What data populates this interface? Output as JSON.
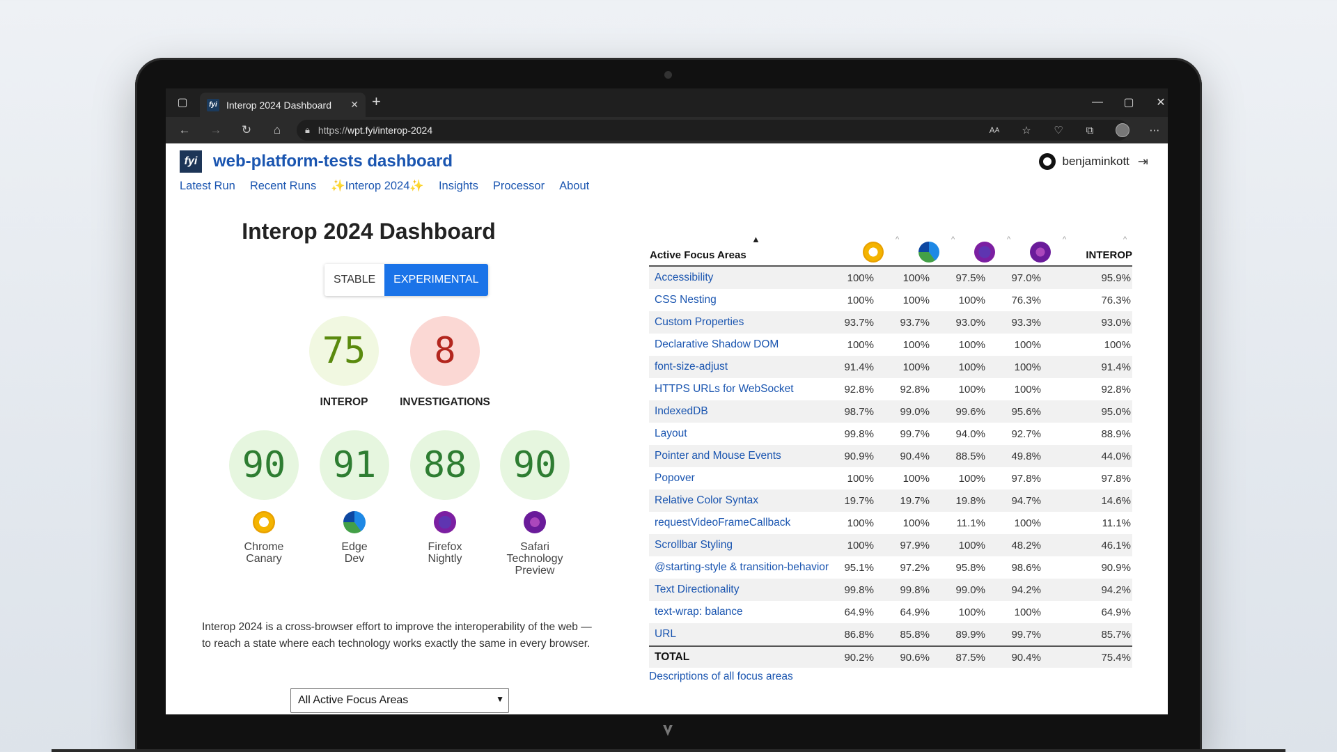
{
  "browser": {
    "tab_title": "Interop 2024 Dashboard",
    "tab_favicon": "fyi",
    "url_scheme": "https://",
    "url_host": "wpt.fyi/interop-2024"
  },
  "site": {
    "logo": "fyi",
    "title": "web-platform-tests dashboard",
    "user": "benjaminkott",
    "nav": [
      "Latest Run",
      "Recent Runs",
      "✨Interop 2024✨",
      "Insights",
      "Processor",
      "About"
    ]
  },
  "dashboard": {
    "title": "Interop 2024 Dashboard",
    "toggle": {
      "stable": "STABLE",
      "experimental": "EXPERIMENTAL",
      "selected": "EXPERIMENTAL"
    },
    "interop": {
      "value": "75",
      "label": "INTEROP"
    },
    "investigations": {
      "value": "8",
      "label": "INVESTIGATIONS"
    },
    "browsers": [
      {
        "score": "90",
        "line1": "Chrome",
        "line2": "Canary",
        "line3": "",
        "icon": "chrome-canary-icon"
      },
      {
        "score": "91",
        "line1": "Edge",
        "line2": "Dev",
        "line3": "",
        "icon": "edge-dev-icon"
      },
      {
        "score": "88",
        "line1": "Firefox",
        "line2": "Nightly",
        "line3": "",
        "icon": "firefox-nightly-icon"
      },
      {
        "score": "90",
        "line1": "Safari",
        "line2": "Technology",
        "line3": "Preview",
        "icon": "safari-tp-icon"
      }
    ],
    "description": "Interop 2024 is a cross-browser effort to improve the interoperability of the web — to reach a state where each technology works exactly the same in every browser.",
    "select_value": "All Active Focus Areas"
  },
  "table": {
    "header": {
      "focus": "Active Focus Areas",
      "interop": "INTEROP"
    },
    "rows": [
      {
        "name": "Accessibility",
        "v": [
          "100%",
          "100%",
          "97.5%",
          "97.0%",
          "95.9%"
        ]
      },
      {
        "name": "CSS Nesting",
        "v": [
          "100%",
          "100%",
          "100%",
          "76.3%",
          "76.3%"
        ]
      },
      {
        "name": "Custom Properties",
        "v": [
          "93.7%",
          "93.7%",
          "93.0%",
          "93.3%",
          "93.0%"
        ]
      },
      {
        "name": "Declarative Shadow DOM",
        "v": [
          "100%",
          "100%",
          "100%",
          "100%",
          "100%"
        ]
      },
      {
        "name": "font-size-adjust",
        "v": [
          "91.4%",
          "100%",
          "100%",
          "100%",
          "91.4%"
        ]
      },
      {
        "name": "HTTPS URLs for WebSocket",
        "v": [
          "92.8%",
          "92.8%",
          "100%",
          "100%",
          "92.8%"
        ]
      },
      {
        "name": "IndexedDB",
        "v": [
          "98.7%",
          "99.0%",
          "99.6%",
          "95.6%",
          "95.0%"
        ]
      },
      {
        "name": "Layout",
        "v": [
          "99.8%",
          "99.7%",
          "94.0%",
          "92.7%",
          "88.9%"
        ]
      },
      {
        "name": "Pointer and Mouse Events",
        "v": [
          "90.9%",
          "90.4%",
          "88.5%",
          "49.8%",
          "44.0%"
        ]
      },
      {
        "name": "Popover",
        "v": [
          "100%",
          "100%",
          "100%",
          "97.8%",
          "97.8%"
        ]
      },
      {
        "name": "Relative Color Syntax",
        "v": [
          "19.7%",
          "19.7%",
          "19.8%",
          "94.7%",
          "14.6%"
        ]
      },
      {
        "name": "requestVideoFrameCallback",
        "v": [
          "100%",
          "100%",
          "11.1%",
          "100%",
          "11.1%"
        ]
      },
      {
        "name": "Scrollbar Styling",
        "v": [
          "100%",
          "97.9%",
          "100%",
          "48.2%",
          "46.1%"
        ]
      },
      {
        "name": "@starting-style & transition-behavior",
        "v": [
          "95.1%",
          "97.2%",
          "95.8%",
          "98.6%",
          "90.9%"
        ]
      },
      {
        "name": "Text Directionality",
        "v": [
          "99.8%",
          "99.8%",
          "99.0%",
          "94.2%",
          "94.2%"
        ]
      },
      {
        "name": "text-wrap: balance",
        "v": [
          "64.9%",
          "64.9%",
          "100%",
          "100%",
          "64.9%"
        ]
      },
      {
        "name": "URL",
        "v": [
          "86.8%",
          "85.8%",
          "89.9%",
          "99.7%",
          "85.7%"
        ]
      }
    ],
    "total": {
      "name": "TOTAL",
      "v": [
        "90.2%",
        "90.6%",
        "87.5%",
        "90.4%",
        "75.4%"
      ]
    },
    "descriptions_link": "Descriptions of all focus areas"
  }
}
